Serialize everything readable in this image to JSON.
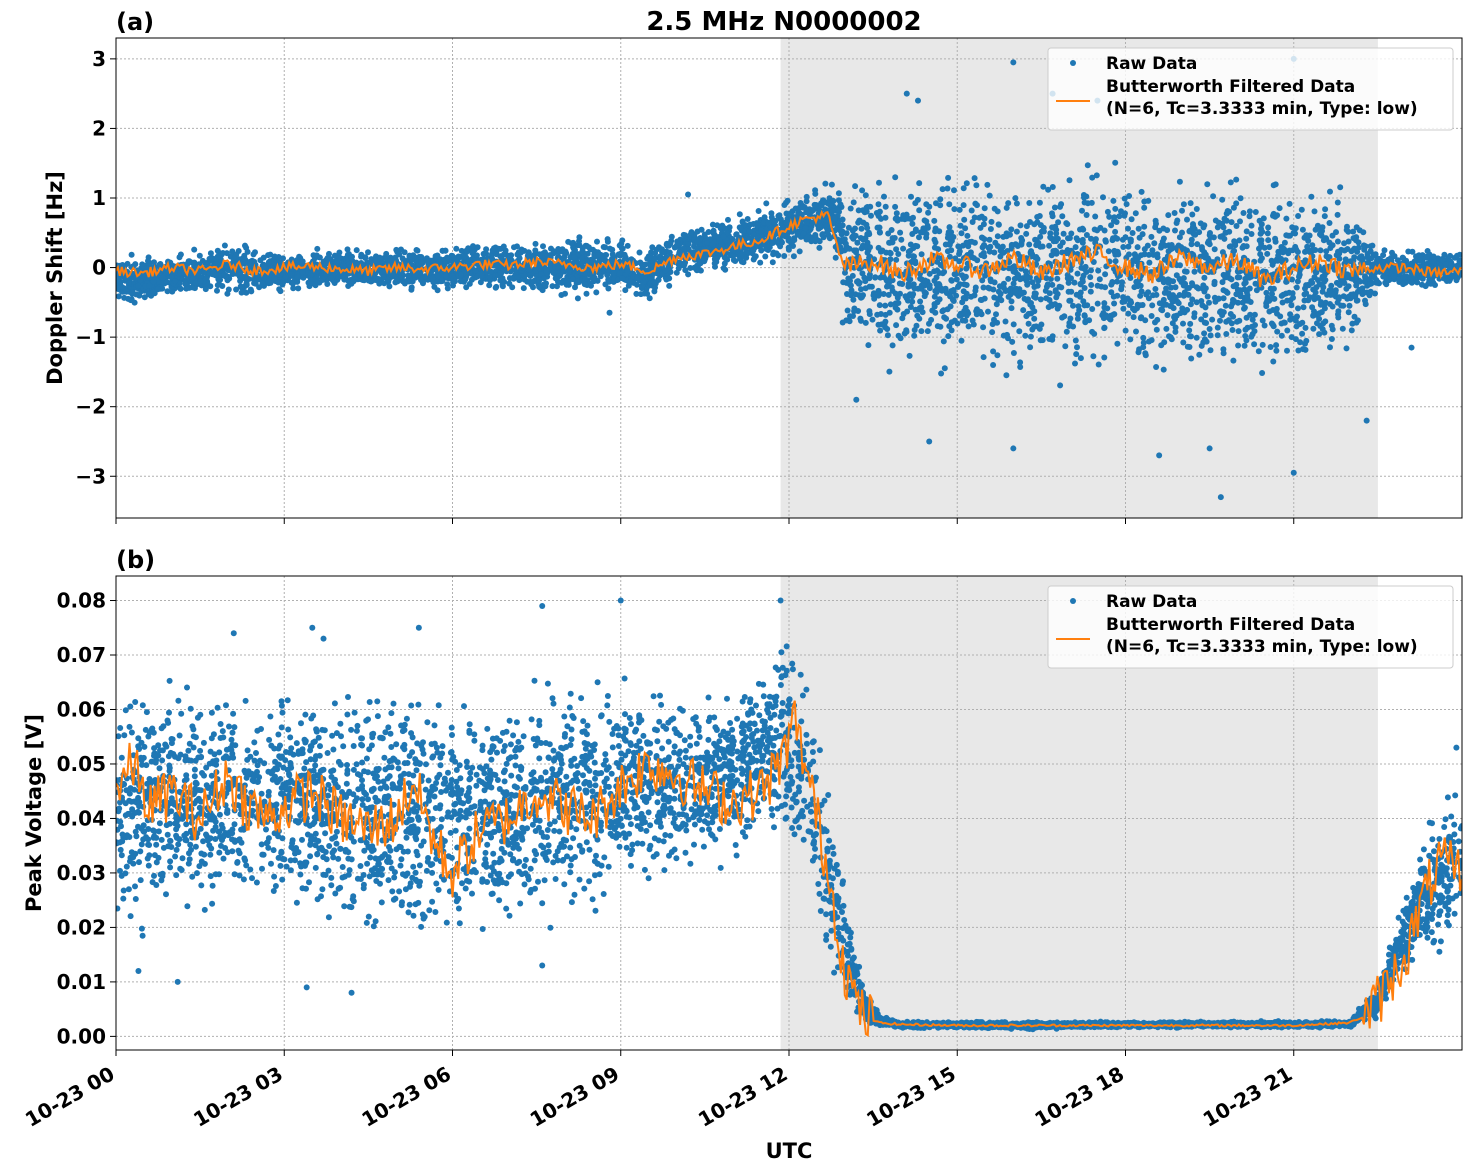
{
  "figure": {
    "title": "2.5 MHz N0000002",
    "xlabel": "UTC",
    "x_tick_labels": [
      "10-23 00",
      "10-23 03",
      "10-23 06",
      "10-23 09",
      "10-23 12",
      "10-23 15",
      "10-23 18",
      "10-23 21"
    ]
  },
  "legend": {
    "raw_label": "Raw Data",
    "filtered_label_line1": "Butterworth Filtered Data",
    "filtered_label_line2": "(N=6, Tc=3.3333 min, Type: low)"
  },
  "colors": {
    "raw": "#1f77b4",
    "filtered": "#ff7f0e",
    "shade": "#e8e8e8",
    "grid": "#b0b0b0"
  },
  "chart_data": [
    {
      "panel": "(a)",
      "type": "scatter",
      "ylabel": "Doppler Shift [Hz]",
      "xlim_hours": [
        0,
        24
      ],
      "ylim": [
        -3.6,
        3.3
      ],
      "y_ticks": [
        -3,
        -2,
        -1,
        0,
        1,
        2,
        3
      ],
      "y_tick_labels": [
        "−3",
        "−2",
        "−1",
        "0",
        "1",
        "2",
        "3"
      ],
      "shaded_interval_hours": [
        11.85,
        22.5
      ],
      "grid": true,
      "legend_position": "top-right",
      "series": [
        {
          "name": "Raw Data",
          "style": "scatter",
          "envelope": {
            "x": [
              0,
              1,
              2,
              3,
              4,
              5,
              6,
              7,
              8,
              9,
              9.5,
              10,
              11,
              11.85,
              12.5,
              12.8,
              13.0,
              14,
              16,
              18,
              20,
              22,
              22.5,
              23,
              24
            ],
            "y_low": [
              -0.6,
              -0.5,
              -0.5,
              -0.4,
              -0.35,
              -0.4,
              -0.4,
              -0.4,
              -0.5,
              -0.4,
              -0.6,
              -0.2,
              -0.1,
              0.0,
              0.2,
              0.3,
              -1.3,
              -1.7,
              -1.8,
              -1.8,
              -1.8,
              -1.5,
              -0.4,
              -0.4,
              -0.3
            ],
            "y_high": [
              0.25,
              0.2,
              0.45,
              0.25,
              0.3,
              0.35,
              0.35,
              0.45,
              0.5,
              0.5,
              0.4,
              0.6,
              0.8,
              1.0,
              1.2,
              1.35,
              1.5,
              1.6,
              1.7,
              1.7,
              1.6,
              1.3,
              0.4,
              0.3,
              0.3
            ]
          },
          "outliers": [
            {
              "x": 14.1,
              "y": 2.5
            },
            {
              "x": 14.3,
              "y": 2.4
            },
            {
              "x": 16.0,
              "y": 2.95
            },
            {
              "x": 17.5,
              "y": 2.4
            },
            {
              "x": 21.0,
              "y": 3.0
            },
            {
              "x": 16.7,
              "y": 2.5
            },
            {
              "x": 19.7,
              "y": -3.3
            },
            {
              "x": 21.0,
              "y": -2.95
            },
            {
              "x": 18.6,
              "y": -2.7
            },
            {
              "x": 14.5,
              "y": -2.5
            },
            {
              "x": 16.0,
              "y": -2.6
            },
            {
              "x": 19.5,
              "y": -2.6
            },
            {
              "x": 13.2,
              "y": -1.9
            },
            {
              "x": 22.3,
              "y": -2.2
            },
            {
              "x": 23.1,
              "y": -1.15
            },
            {
              "x": 10.2,
              "y": 1.05
            },
            {
              "x": 8.8,
              "y": -0.65
            }
          ]
        },
        {
          "name": "Butterworth Filtered Data\n(N=6, Tc=3.3333 min, Type: low)",
          "style": "line",
          "x": [
            0,
            0.5,
            1,
            1.5,
            2,
            2.5,
            3,
            3.5,
            4,
            4.5,
            5,
            5.5,
            6,
            6.5,
            7,
            7.5,
            8,
            8.5,
            9,
            9.5,
            10,
            10.5,
            11,
            11.5,
            12,
            12.3,
            12.7,
            12.85,
            13.0,
            13.5,
            14,
            14.5,
            15,
            15.5,
            16,
            16.5,
            17,
            17.5,
            18,
            18.5,
            19,
            19.5,
            20,
            20.5,
            21,
            21.5,
            22,
            22.5,
            23,
            23.5,
            24
          ],
          "y": [
            -0.05,
            -0.08,
            0.0,
            -0.05,
            0.05,
            -0.05,
            0.0,
            0.02,
            -0.02,
            -0.05,
            0.0,
            -0.02,
            0.0,
            0.05,
            0.03,
            0.08,
            0.05,
            0.0,
            0.05,
            -0.05,
            0.15,
            0.2,
            0.3,
            0.4,
            0.6,
            0.7,
            0.75,
            0.3,
            0.0,
            0.1,
            -0.1,
            0.1,
            0.05,
            -0.05,
            0.15,
            -0.1,
            0.1,
            0.2,
            0.0,
            -0.1,
            0.15,
            0.0,
            0.1,
            -0.2,
            0.0,
            0.1,
            -0.05,
            0.0,
            0.0,
            -0.08,
            -0.05
          ]
        }
      ]
    },
    {
      "panel": "(b)",
      "type": "scatter",
      "ylabel": "Peak Voltage [V]",
      "xlim_hours": [
        0,
        24
      ],
      "ylim": [
        -0.0025,
        0.0845
      ],
      "y_ticks": [
        0,
        0.01,
        0.02,
        0.03,
        0.04,
        0.05,
        0.06,
        0.07,
        0.08
      ],
      "y_tick_labels": [
        "0.00",
        "0.01",
        "0.02",
        "0.03",
        "0.04",
        "0.05",
        "0.06",
        "0.07",
        "0.08"
      ],
      "shaded_interval_hours": [
        11.85,
        22.5
      ],
      "grid": true,
      "legend_position": "top-right",
      "series": [
        {
          "name": "Raw Data",
          "style": "scatter",
          "envelope": {
            "x": [
              0,
              1,
              2,
              3,
              4,
              5,
              5.3,
              6,
              7,
              8,
              9,
              10,
              11,
              11.5,
              11.85,
              12.1,
              12.4,
              12.7,
              13.0,
              13.3,
              13.6,
              14,
              16,
              18,
              20,
              22,
              22.5,
              23,
              23.5,
              24
            ],
            "y_low": [
              0.015,
              0.017,
              0.02,
              0.02,
              0.015,
              0.013,
              0.012,
              0.015,
              0.015,
              0.02,
              0.022,
              0.025,
              0.03,
              0.035,
              0.035,
              0.03,
              0.02,
              0.01,
              0.004,
              0.002,
              0.0015,
              0.0015,
              0.0012,
              0.0015,
              0.0015,
              0.0015,
              0.003,
              0.01,
              0.013,
              0.015
            ],
            "y_high": [
              0.068,
              0.068,
              0.068,
              0.068,
              0.068,
              0.068,
              0.07,
              0.066,
              0.068,
              0.068,
              0.07,
              0.068,
              0.067,
              0.07,
              0.077,
              0.073,
              0.068,
              0.05,
              0.03,
              0.012,
              0.004,
              0.0028,
              0.0028,
              0.0028,
              0.0028,
              0.003,
              0.01,
              0.028,
              0.045,
              0.05
            ]
          },
          "outliers": [
            {
              "x": 9.0,
              "y": 0.08
            },
            {
              "x": 7.6,
              "y": 0.079
            },
            {
              "x": 11.85,
              "y": 0.08
            },
            {
              "x": 3.5,
              "y": 0.075
            },
            {
              "x": 5.4,
              "y": 0.075
            },
            {
              "x": 2.1,
              "y": 0.074
            },
            {
              "x": 3.7,
              "y": 0.073
            },
            {
              "x": 4.2,
              "y": 0.008
            },
            {
              "x": 3.4,
              "y": 0.009
            },
            {
              "x": 1.1,
              "y": 0.01
            },
            {
              "x": 0.4,
              "y": 0.012
            },
            {
              "x": 7.6,
              "y": 0.013
            },
            {
              "x": 23.9,
              "y": 0.053
            }
          ]
        },
        {
          "name": "Butterworth Filtered Data\n(N=6, Tc=3.3333 min, Type: low)",
          "style": "line",
          "x": [
            0,
            0.3,
            0.6,
            1,
            1.5,
            2,
            2.3,
            2.7,
            3,
            3.5,
            4,
            4.5,
            5,
            5.3,
            5.7,
            6,
            6.5,
            7,
            7.5,
            8,
            8.5,
            9,
            9.5,
            10,
            10.5,
            11,
            11.5,
            11.85,
            12.1,
            12.4,
            12.7,
            13.0,
            13.3,
            13.6,
            14,
            15,
            16,
            17,
            18,
            19,
            20,
            21,
            22,
            22.3,
            22.6,
            23,
            23.3,
            23.6,
            24
          ],
          "y": [
            0.045,
            0.05,
            0.042,
            0.045,
            0.04,
            0.048,
            0.043,
            0.04,
            0.042,
            0.045,
            0.04,
            0.038,
            0.04,
            0.047,
            0.035,
            0.03,
            0.038,
            0.04,
            0.045,
            0.042,
            0.04,
            0.046,
            0.05,
            0.048,
            0.045,
            0.043,
            0.045,
            0.05,
            0.058,
            0.045,
            0.03,
            0.012,
            0.004,
            0.0025,
            0.0022,
            0.002,
            0.002,
            0.002,
            0.002,
            0.002,
            0.002,
            0.002,
            0.0025,
            0.004,
            0.008,
            0.015,
            0.025,
            0.032,
            0.03
          ]
        }
      ]
    }
  ]
}
